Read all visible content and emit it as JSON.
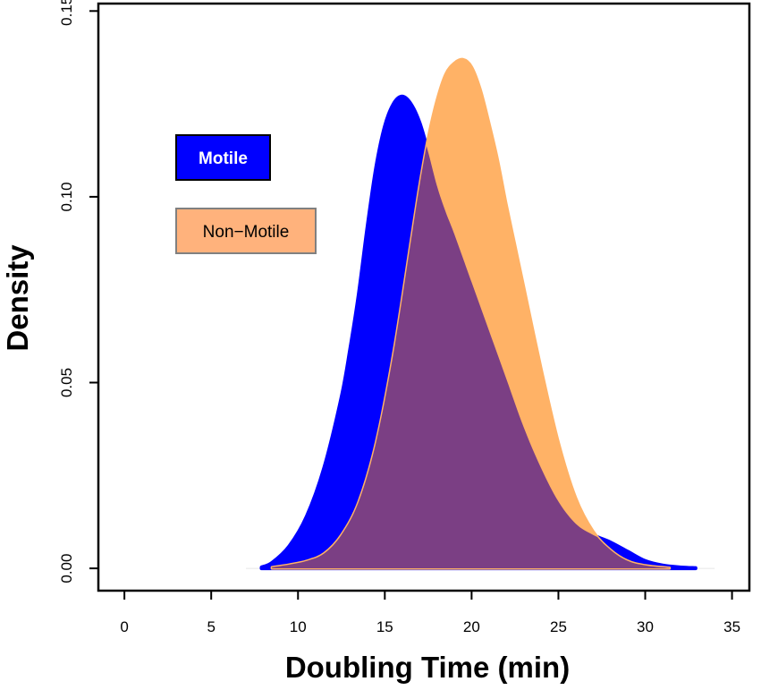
{
  "chart_data": {
    "type": "area",
    "xlabel": "Doubling Time (min)",
    "ylabel": "Density",
    "xlim": [
      -1.5,
      36
    ],
    "ylim": [
      -0.006,
      0.152
    ],
    "x_ticks": [
      0,
      5,
      10,
      15,
      20,
      25,
      30,
      35
    ],
    "y_ticks": [
      0.0,
      0.05,
      0.1,
      0.15
    ],
    "x_tick_labels": [
      "0",
      "5",
      "10",
      "15",
      "20",
      "25",
      "30",
      "35"
    ],
    "y_tick_labels": [
      "0.00",
      "0.05",
      "0.10",
      "0.15"
    ],
    "grid": false,
    "legend_position": "top-left",
    "series": [
      {
        "name": "Motile",
        "color": "#0000ff",
        "x": [
          7.9,
          8.5,
          9.5,
          10.5,
          11.5,
          12.5,
          13.0,
          13.5,
          14.0,
          14.5,
          15.0,
          15.5,
          16.0,
          16.5,
          17.0,
          17.5,
          18.0,
          18.5,
          19.0,
          20.0,
          21.0,
          22.0,
          23.0,
          24.0,
          25.0,
          26.0,
          27.0,
          28.0,
          29.0,
          30.0,
          31.0,
          32.0,
          32.9
        ],
        "y": [
          0.0003,
          0.0015,
          0.006,
          0.014,
          0.027,
          0.046,
          0.059,
          0.074,
          0.092,
          0.108,
          0.119,
          0.125,
          0.127,
          0.125,
          0.12,
          0.112,
          0.103,
          0.096,
          0.09,
          0.077,
          0.064,
          0.051,
          0.038,
          0.027,
          0.018,
          0.012,
          0.009,
          0.007,
          0.0045,
          0.002,
          0.0008,
          0.0003,
          0.0001
        ]
      },
      {
        "name": "Non-Motile",
        "color": "#ffb266",
        "x": [
          8.5,
          9.5,
          10.5,
          11.5,
          12.5,
          13.5,
          14.5,
          15.5,
          16.5,
          17.0,
          17.5,
          18.0,
          18.5,
          19.0,
          19.5,
          20.0,
          20.5,
          21.0,
          21.5,
          22.0,
          22.5,
          23.0,
          24.0,
          25.0,
          26.0,
          27.0,
          28.0,
          29.0,
          30.0,
          31.4
        ],
        "y": [
          0.0003,
          0.001,
          0.002,
          0.004,
          0.009,
          0.018,
          0.034,
          0.058,
          0.088,
          0.103,
          0.116,
          0.126,
          0.133,
          0.136,
          0.137,
          0.135,
          0.129,
          0.12,
          0.11,
          0.098,
          0.087,
          0.076,
          0.054,
          0.034,
          0.019,
          0.01,
          0.005,
          0.002,
          0.0008,
          0.0001
        ]
      }
    ]
  },
  "legend": {
    "items": [
      {
        "label": "Motile",
        "fill": "#0000ff",
        "border": "#000000",
        "text_color": "#ffffff"
      },
      {
        "label": "Non−Motile",
        "fill": "#ffb27c",
        "border": "#808080",
        "text_color": "#000000"
      }
    ]
  }
}
